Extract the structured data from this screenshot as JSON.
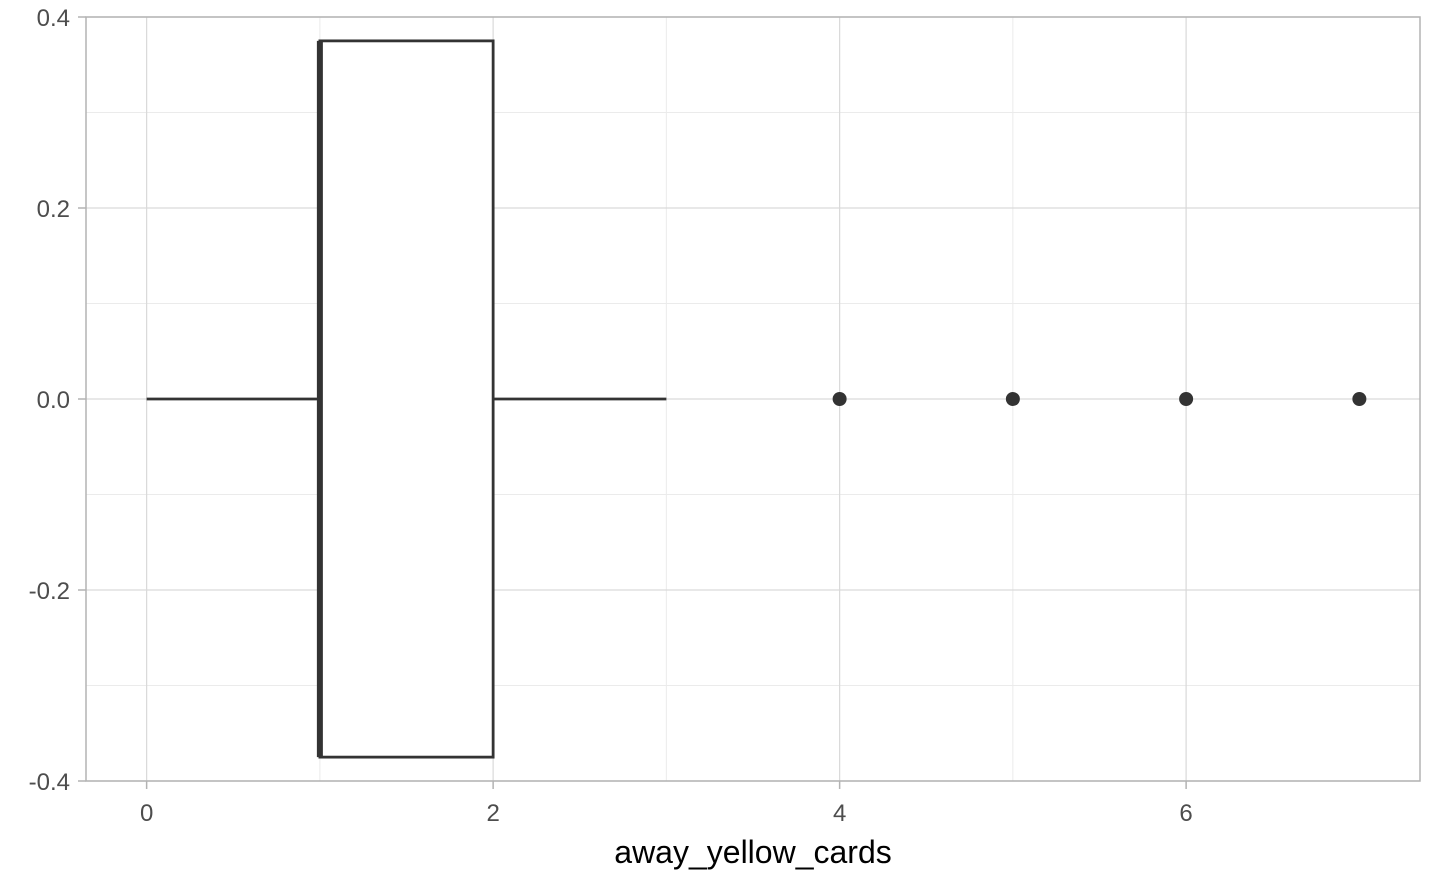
{
  "chart_data": {
    "type": "boxplot",
    "orientation": "horizontal",
    "title": "",
    "xlabel": "away_yellow_cards",
    "ylabel": "",
    "xlim": [
      -0.35,
      7.35
    ],
    "ylim": [
      -0.4,
      0.4
    ],
    "x_ticks": [
      0,
      2,
      4,
      6
    ],
    "x_tick_labels": [
      "0",
      "2",
      "4",
      "6"
    ],
    "y_ticks": [
      -0.4,
      -0.2,
      0.0,
      0.2,
      0.4
    ],
    "y_tick_labels": [
      "-0.4",
      "-0.2",
      "0.0",
      "0.2",
      "0.4"
    ],
    "grid": true,
    "box": {
      "min": 0,
      "q1": 1,
      "median": 1,
      "q3": 2,
      "max": 3,
      "y_center": 0.0,
      "half_width": 0.375
    },
    "outliers": [
      4,
      5,
      6,
      7
    ],
    "colors": {
      "box_line": "#333333",
      "box_fill": "#ffffff",
      "point": "#333333",
      "grid_major": "#d9d9d9",
      "grid_minor": "#ebebeb",
      "panel_border": "#b3b3b3",
      "tick_text": "#4d4d4d",
      "axis_title": "#000000"
    }
  }
}
